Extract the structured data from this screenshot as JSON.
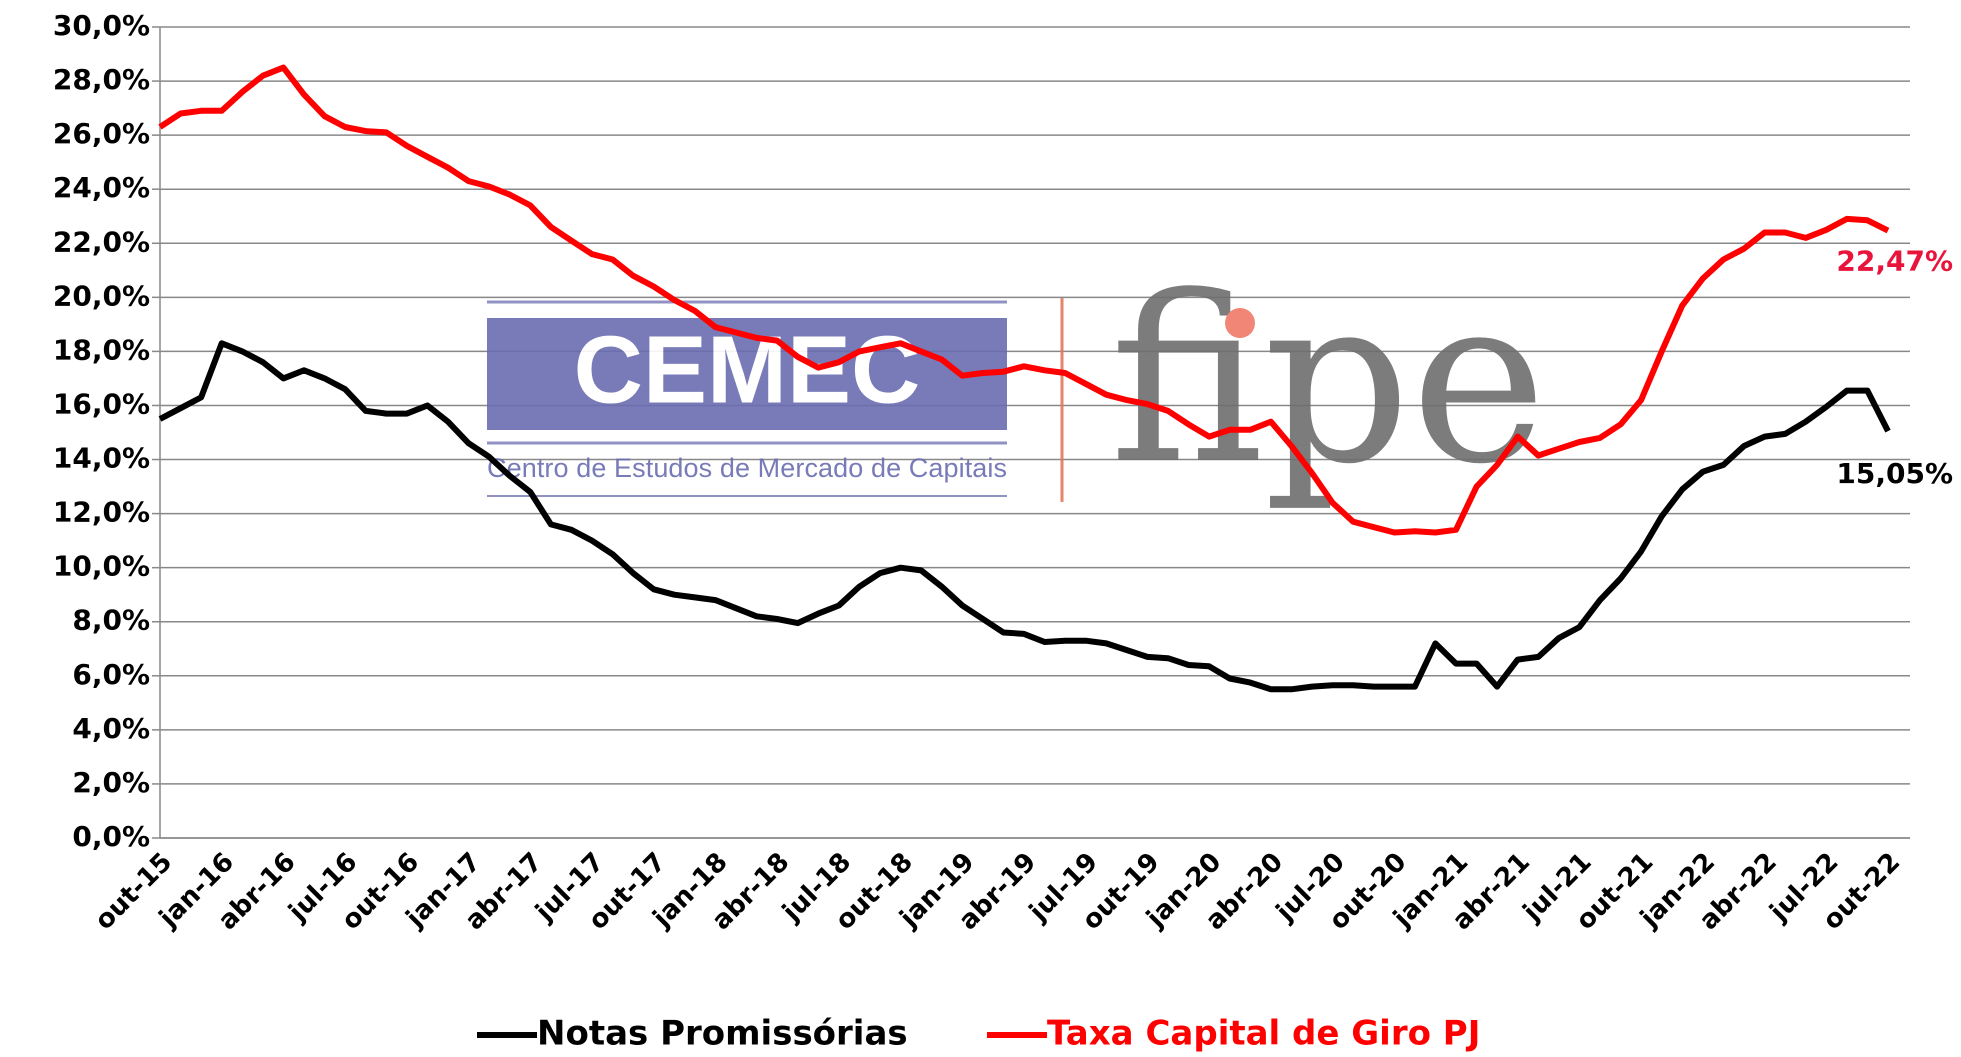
{
  "chart_data": {
    "type": "line",
    "categories": [
      "out-15",
      null,
      null,
      "jan-16",
      null,
      null,
      "abr-16",
      null,
      null,
      "jul-16",
      null,
      null,
      "out-16",
      null,
      null,
      "jan-17",
      null,
      null,
      "abr-17",
      null,
      null,
      "jul-17",
      null,
      null,
      "out-17",
      null,
      null,
      "jan-18",
      null,
      null,
      "abr-18",
      null,
      null,
      "jul-18",
      null,
      null,
      "out-18",
      null,
      null,
      "jan-19",
      null,
      null,
      "abr-19",
      null,
      null,
      "jul-19",
      null,
      null,
      "out-19",
      null,
      null,
      "jan-20",
      null,
      null,
      "abr-20",
      null,
      null,
      "jul-20",
      null,
      null,
      "out-20",
      null,
      null,
      "jan-21",
      null,
      null,
      "abr-21",
      null,
      null,
      "jul-21",
      null,
      null,
      "out-21",
      null,
      null,
      "jan-22",
      null,
      null,
      "abr-22",
      null,
      null,
      "jul-22",
      null,
      null,
      "out-22"
    ],
    "series": [
      {
        "name": "Notas Promissórias",
        "color": "#000000",
        "label_color": "#000000",
        "values": [
          15.5,
          15.9,
          16.3,
          18.3,
          18.0,
          17.6,
          17.0,
          17.3,
          17.0,
          16.6,
          15.8,
          15.7,
          15.7,
          16.0,
          15.4,
          14.6,
          14.1,
          13.4,
          12.8,
          11.6,
          11.4,
          11.0,
          10.5,
          9.8,
          9.2,
          9.0,
          8.9,
          8.8,
          8.5,
          8.2,
          8.1,
          7.95,
          8.3,
          8.6,
          9.3,
          9.8,
          10.0,
          9.9,
          9.3,
          8.6,
          8.1,
          7.6,
          7.55,
          7.25,
          7.3,
          7.3,
          7.2,
          6.95,
          6.7,
          6.65,
          6.4,
          6.35,
          5.9,
          5.75,
          5.5,
          5.5,
          5.6,
          5.65,
          5.65,
          5.6,
          5.6,
          5.6,
          7.2,
          6.45,
          6.45,
          5.6,
          6.6,
          6.7,
          7.4,
          7.8,
          8.8,
          9.6,
          10.6,
          11.9,
          12.9,
          13.55,
          13.8,
          14.5,
          14.85,
          14.95,
          15.4,
          15.95,
          16.55,
          16.55,
          15.05
        ],
        "value_labels": [
          null,
          null,
          null,
          null,
          null,
          null,
          null,
          null,
          null,
          null,
          null,
          null,
          null,
          null,
          null,
          null,
          null,
          null,
          null,
          null,
          null,
          null,
          null,
          null,
          null,
          null,
          null,
          null,
          null,
          null,
          null,
          null,
          null,
          null,
          null,
          null,
          null,
          null,
          null,
          null,
          null,
          null,
          null,
          null,
          null,
          null,
          null,
          null,
          null,
          null,
          null,
          null,
          null,
          null,
          null,
          null,
          null,
          null,
          null,
          null,
          null,
          null,
          null,
          null,
          null,
          null,
          null,
          null,
          null,
          null,
          null,
          null,
          null,
          null,
          null,
          null,
          null,
          null,
          null,
          null,
          null,
          null,
          null,
          null,
          "15,05%"
        ]
      },
      {
        "name": "Taxa Capital de Giro PJ",
        "color": "#ff0000",
        "label_color": "#e8143c",
        "values": [
          26.3,
          26.8,
          26.9,
          26.9,
          27.6,
          28.2,
          28.5,
          27.5,
          26.7,
          26.3,
          26.15,
          26.1,
          25.6,
          25.2,
          24.8,
          24.3,
          24.1,
          23.8,
          23.4,
          22.6,
          22.1,
          21.6,
          21.4,
          20.8,
          20.4,
          19.9,
          19.5,
          18.9,
          18.7,
          18.5,
          18.4,
          17.8,
          17.4,
          17.6,
          18.0,
          18.15,
          18.3,
          18.0,
          17.7,
          17.1,
          17.2,
          17.25,
          17.45,
          17.3,
          17.2,
          16.8,
          16.4,
          16.2,
          16.05,
          15.8,
          15.3,
          14.85,
          15.1,
          15.1,
          15.4,
          14.5,
          13.5,
          12.4,
          11.7,
          11.5,
          11.3,
          11.35,
          11.3,
          11.4,
          13.0,
          13.8,
          14.85,
          14.15,
          14.4,
          14.65,
          14.8,
          15.3,
          16.2,
          18.0,
          19.7,
          20.7,
          21.4,
          21.8,
          22.4,
          22.4,
          22.2,
          22.5,
          22.9,
          22.85,
          22.47
        ],
        "value_labels": [
          null,
          null,
          null,
          null,
          null,
          null,
          null,
          null,
          null,
          null,
          null,
          null,
          null,
          null,
          null,
          null,
          null,
          null,
          null,
          null,
          null,
          null,
          null,
          null,
          null,
          null,
          null,
          null,
          null,
          null,
          null,
          null,
          null,
          null,
          null,
          null,
          null,
          null,
          null,
          null,
          null,
          null,
          null,
          null,
          null,
          null,
          null,
          null,
          null,
          null,
          null,
          null,
          null,
          null,
          null,
          null,
          null,
          null,
          null,
          null,
          null,
          null,
          null,
          null,
          null,
          null,
          null,
          null,
          null,
          null,
          null,
          null,
          null,
          null,
          null,
          null,
          null,
          null,
          null,
          null,
          null,
          null,
          null,
          null,
          "22,47%"
        ]
      }
    ],
    "ylim": [
      0,
      30
    ],
    "yticks": [
      {
        "value": 0,
        "label": "0,0%"
      },
      {
        "value": 2,
        "label": "2,0%"
      },
      {
        "value": 4,
        "label": "4,0%"
      },
      {
        "value": 6,
        "label": "6,0%"
      },
      {
        "value": 8,
        "label": "8,0%"
      },
      {
        "value": 10,
        "label": "10,0%"
      },
      {
        "value": 12,
        "label": "12,0%"
      },
      {
        "value": 14,
        "label": "14,0%"
      },
      {
        "value": 16,
        "label": "16,0%"
      },
      {
        "value": 18,
        "label": "18,0%"
      },
      {
        "value": 20,
        "label": "20,0%"
      },
      {
        "value": 22,
        "label": "22,0%"
      },
      {
        "value": 24,
        "label": "24,0%"
      },
      {
        "value": 26,
        "label": "26,0%"
      },
      {
        "value": 28,
        "label": "28,0%"
      },
      {
        "value": 30,
        "label": "30,0%"
      }
    ],
    "grid": true,
    "legend": "bottom"
  },
  "logo": {
    "left": "CEMEC",
    "subtitle": "Centro de Estudos de Mercado de Capitais",
    "right": "fipe"
  }
}
